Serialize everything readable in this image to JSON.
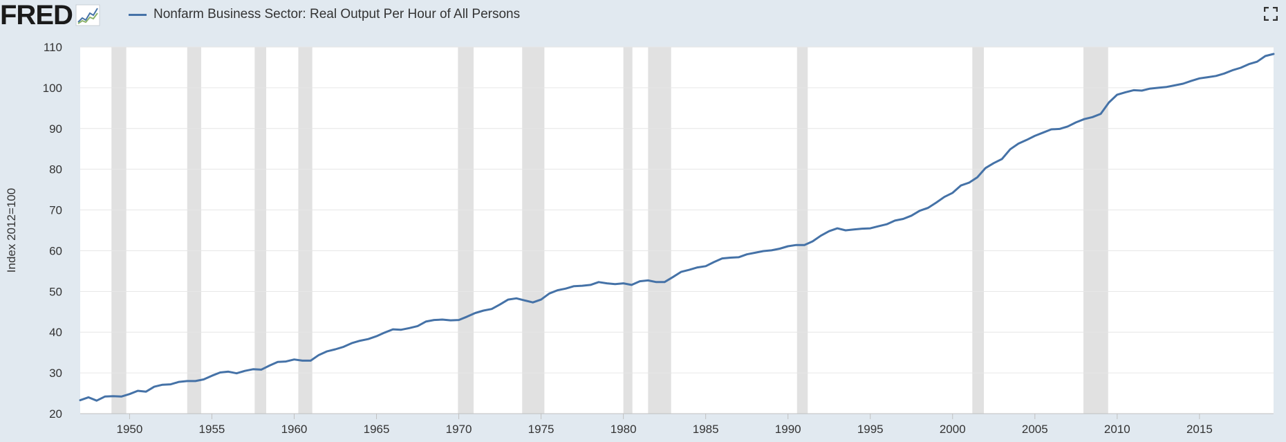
{
  "header": {
    "logo_text": "FRED",
    "legend_label": "Nonfarm Business Sector: Real Output Per Hour of All Persons",
    "series_color": "#4572a7",
    "fullscreen_icon": "fullscreen-icon"
  },
  "chart_data": {
    "type": "line",
    "title": "",
    "xlabel": "",
    "ylabel": "Index 2012=100",
    "xlim": [
      1947.0,
      2019.5
    ],
    "ylim": [
      20,
      110
    ],
    "yticks": [
      20,
      30,
      40,
      50,
      60,
      70,
      80,
      90,
      100,
      110
    ],
    "xticks": [
      1950,
      1955,
      1960,
      1965,
      1970,
      1975,
      1980,
      1985,
      1990,
      1995,
      2000,
      2005,
      2010,
      2015
    ],
    "grid": true,
    "legend_position": "top-left",
    "recession_color": "#e1e1e1",
    "recessions": [
      [
        1948.9,
        1949.8
      ],
      [
        1953.5,
        1954.35
      ],
      [
        1957.6,
        1958.3
      ],
      [
        1960.25,
        1961.1
      ],
      [
        1969.95,
        1970.9
      ],
      [
        1973.85,
        1975.2
      ],
      [
        1980.0,
        1980.55
      ],
      [
        1981.5,
        1982.9
      ],
      [
        1990.55,
        1991.2
      ],
      [
        2001.2,
        2001.9
      ],
      [
        2007.95,
        2009.45
      ]
    ],
    "series": [
      {
        "name": "Nonfarm Business Sector: Real Output Per Hour of All Persons",
        "color": "#4572a7",
        "points": [
          [
            1947.0,
            23.3
          ],
          [
            1947.5,
            24.0
          ],
          [
            1948.0,
            23.2
          ],
          [
            1948.5,
            24.2
          ],
          [
            1949.0,
            24.3
          ],
          [
            1949.5,
            24.2
          ],
          [
            1950.0,
            24.8
          ],
          [
            1950.5,
            25.6
          ],
          [
            1951.0,
            25.4
          ],
          [
            1951.5,
            26.6
          ],
          [
            1952.0,
            27.1
          ],
          [
            1952.5,
            27.2
          ],
          [
            1953.0,
            27.8
          ],
          [
            1953.5,
            28.0
          ],
          [
            1954.0,
            28.0
          ],
          [
            1954.5,
            28.4
          ],
          [
            1955.0,
            29.3
          ],
          [
            1955.5,
            30.1
          ],
          [
            1956.0,
            30.3
          ],
          [
            1956.5,
            29.9
          ],
          [
            1957.0,
            30.5
          ],
          [
            1957.5,
            30.9
          ],
          [
            1958.0,
            30.8
          ],
          [
            1958.5,
            31.8
          ],
          [
            1959.0,
            32.7
          ],
          [
            1959.5,
            32.8
          ],
          [
            1960.0,
            33.3
          ],
          [
            1960.5,
            33.0
          ],
          [
            1961.0,
            33.0
          ],
          [
            1961.5,
            34.4
          ],
          [
            1962.0,
            35.3
          ],
          [
            1962.5,
            35.8
          ],
          [
            1963.0,
            36.4
          ],
          [
            1963.5,
            37.3
          ],
          [
            1964.0,
            37.9
          ],
          [
            1964.5,
            38.3
          ],
          [
            1965.0,
            39.0
          ],
          [
            1965.5,
            39.9
          ],
          [
            1966.0,
            40.7
          ],
          [
            1966.5,
            40.6
          ],
          [
            1967.0,
            41.0
          ],
          [
            1967.5,
            41.5
          ],
          [
            1968.0,
            42.6
          ],
          [
            1968.5,
            43.0
          ],
          [
            1969.0,
            43.1
          ],
          [
            1969.5,
            42.9
          ],
          [
            1970.0,
            43.0
          ],
          [
            1970.5,
            43.8
          ],
          [
            1971.0,
            44.7
          ],
          [
            1971.5,
            45.3
          ],
          [
            1972.0,
            45.7
          ],
          [
            1972.5,
            46.8
          ],
          [
            1973.0,
            48.0
          ],
          [
            1973.5,
            48.3
          ],
          [
            1974.0,
            47.8
          ],
          [
            1974.5,
            47.3
          ],
          [
            1975.0,
            48.0
          ],
          [
            1975.5,
            49.5
          ],
          [
            1976.0,
            50.3
          ],
          [
            1976.5,
            50.7
          ],
          [
            1977.0,
            51.3
          ],
          [
            1977.5,
            51.4
          ],
          [
            1978.0,
            51.6
          ],
          [
            1978.5,
            52.3
          ],
          [
            1979.0,
            52.0
          ],
          [
            1979.5,
            51.8
          ],
          [
            1980.0,
            52.0
          ],
          [
            1980.5,
            51.6
          ],
          [
            1981.0,
            52.5
          ],
          [
            1981.5,
            52.7
          ],
          [
            1982.0,
            52.3
          ],
          [
            1982.5,
            52.3
          ],
          [
            1983.0,
            53.5
          ],
          [
            1983.5,
            54.8
          ],
          [
            1984.0,
            55.3
          ],
          [
            1984.5,
            55.9
          ],
          [
            1985.0,
            56.2
          ],
          [
            1985.5,
            57.2
          ],
          [
            1986.0,
            58.1
          ],
          [
            1986.5,
            58.3
          ],
          [
            1987.0,
            58.4
          ],
          [
            1987.5,
            59.1
          ],
          [
            1988.0,
            59.5
          ],
          [
            1988.5,
            59.9
          ],
          [
            1989.0,
            60.1
          ],
          [
            1989.5,
            60.5
          ],
          [
            1990.0,
            61.1
          ],
          [
            1990.5,
            61.4
          ],
          [
            1991.0,
            61.4
          ],
          [
            1991.5,
            62.3
          ],
          [
            1992.0,
            63.7
          ],
          [
            1992.5,
            64.8
          ],
          [
            1993.0,
            65.5
          ],
          [
            1993.5,
            65.0
          ],
          [
            1994.0,
            65.2
          ],
          [
            1994.5,
            65.4
          ],
          [
            1995.0,
            65.5
          ],
          [
            1995.5,
            66.0
          ],
          [
            1996.0,
            66.5
          ],
          [
            1996.5,
            67.4
          ],
          [
            1997.0,
            67.8
          ],
          [
            1997.5,
            68.6
          ],
          [
            1998.0,
            69.8
          ],
          [
            1998.5,
            70.5
          ],
          [
            1999.0,
            71.8
          ],
          [
            1999.5,
            73.2
          ],
          [
            2000.0,
            74.2
          ],
          [
            2000.5,
            76.0
          ],
          [
            2001.0,
            76.7
          ],
          [
            2001.5,
            78.0
          ],
          [
            2002.0,
            80.3
          ],
          [
            2002.5,
            81.5
          ],
          [
            2003.0,
            82.5
          ],
          [
            2003.5,
            84.9
          ],
          [
            2004.0,
            86.3
          ],
          [
            2004.5,
            87.2
          ],
          [
            2005.0,
            88.2
          ],
          [
            2005.5,
            89.0
          ],
          [
            2006.0,
            89.8
          ],
          [
            2006.5,
            89.9
          ],
          [
            2007.0,
            90.5
          ],
          [
            2007.5,
            91.5
          ],
          [
            2008.0,
            92.3
          ],
          [
            2008.5,
            92.8
          ],
          [
            2009.0,
            93.6
          ],
          [
            2009.5,
            96.4
          ],
          [
            2010.0,
            98.3
          ],
          [
            2010.5,
            98.9
          ],
          [
            2011.0,
            99.4
          ],
          [
            2011.5,
            99.3
          ],
          [
            2012.0,
            99.8
          ],
          [
            2012.5,
            100.0
          ],
          [
            2013.0,
            100.2
          ],
          [
            2013.5,
            100.6
          ],
          [
            2014.0,
            101.0
          ],
          [
            2014.5,
            101.7
          ],
          [
            2015.0,
            102.3
          ],
          [
            2015.5,
            102.6
          ],
          [
            2016.0,
            102.9
          ],
          [
            2016.5,
            103.5
          ],
          [
            2017.0,
            104.3
          ],
          [
            2017.5,
            104.9
          ],
          [
            2018.0,
            105.8
          ],
          [
            2018.5,
            106.4
          ],
          [
            2019.0,
            107.8
          ],
          [
            2019.5,
            108.3
          ]
        ]
      }
    ]
  }
}
